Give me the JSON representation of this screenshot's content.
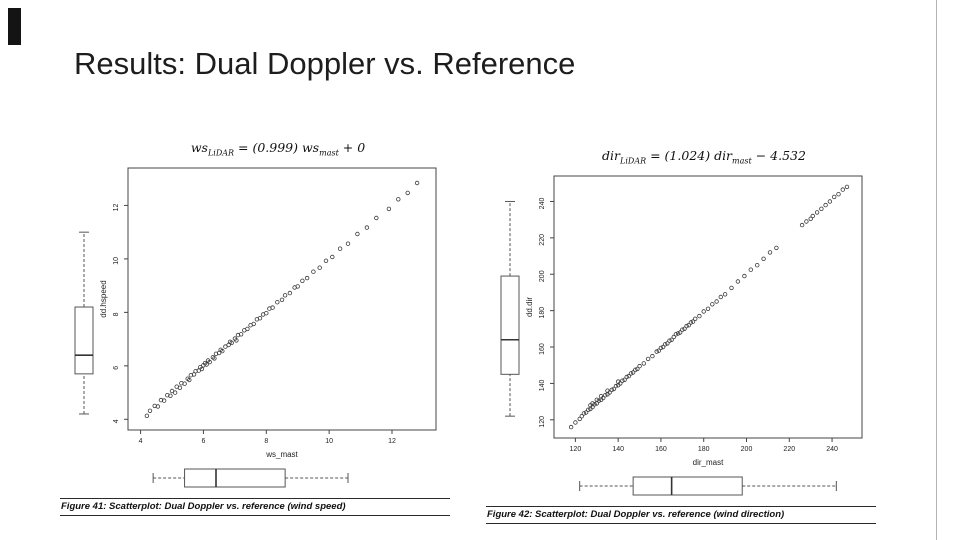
{
  "slide": {
    "title": "Results: Dual Doppler vs. Reference"
  },
  "chart_data": [
    {
      "type": "scatter",
      "title": "ws_LiDAR = (0.999) ws_mast + 0",
      "equation": {
        "lhs": "ws",
        "lhs_sub": "LiDAR",
        "mid": " = (0.999) ",
        "rhs": "ws",
        "rhs_sub": "mast",
        "tail": " + 0"
      },
      "xlabel": "ws_mast",
      "ylabel": "dd.hspeed",
      "caption": "Figure 41: Scatterplot: Dual Doppler vs. reference (wind speed)",
      "xlim": [
        3.6,
        13.4
      ],
      "ylim": [
        3.6,
        13.4
      ],
      "xticks": [
        4,
        6,
        8,
        10,
        12
      ],
      "yticks": [
        4,
        6,
        8,
        10,
        12
      ],
      "legend": "none",
      "grid": false,
      "points": [
        [
          4.2,
          4.13
        ],
        [
          4.3,
          4.32
        ],
        [
          4.45,
          4.5
        ],
        [
          4.55,
          4.48
        ],
        [
          4.65,
          4.72
        ],
        [
          4.75,
          4.7
        ],
        [
          4.85,
          4.9
        ],
        [
          4.95,
          4.88
        ],
        [
          5.0,
          5.06
        ],
        [
          5.1,
          5.0
        ],
        [
          5.15,
          5.22
        ],
        [
          5.25,
          5.18
        ],
        [
          5.3,
          5.35
        ],
        [
          5.4,
          5.33
        ],
        [
          5.5,
          5.52
        ],
        [
          5.55,
          5.47
        ],
        [
          5.6,
          5.65
        ],
        [
          5.7,
          5.68
        ],
        [
          5.75,
          5.8
        ],
        [
          5.85,
          5.82
        ],
        [
          5.9,
          5.95
        ],
        [
          5.95,
          5.88
        ],
        [
          6.0,
          6.02
        ],
        [
          6.05,
          6.1
        ],
        [
          6.1,
          6.05
        ],
        [
          6.15,
          6.2
        ],
        [
          6.2,
          6.14
        ],
        [
          6.3,
          6.32
        ],
        [
          6.35,
          6.28
        ],
        [
          6.4,
          6.45
        ],
        [
          6.5,
          6.48
        ],
        [
          6.55,
          6.6
        ],
        [
          6.6,
          6.55
        ],
        [
          6.7,
          6.72
        ],
        [
          6.8,
          6.78
        ],
        [
          6.85,
          6.9
        ],
        [
          6.9,
          6.86
        ],
        [
          7.0,
          7.02
        ],
        [
          7.05,
          6.95
        ],
        [
          7.1,
          7.15
        ],
        [
          7.2,
          7.18
        ],
        [
          7.3,
          7.33
        ],
        [
          7.4,
          7.38
        ],
        [
          7.5,
          7.52
        ],
        [
          7.6,
          7.57
        ],
        [
          7.7,
          7.74
        ],
        [
          7.8,
          7.78
        ],
        [
          7.9,
          7.92
        ],
        [
          8.0,
          7.97
        ],
        [
          8.1,
          8.14
        ],
        [
          8.2,
          8.18
        ],
        [
          8.35,
          8.38
        ],
        [
          8.5,
          8.47
        ],
        [
          8.6,
          8.64
        ],
        [
          8.75,
          8.72
        ],
        [
          8.9,
          8.93
        ],
        [
          9.0,
          8.97
        ],
        [
          9.15,
          9.18
        ],
        [
          9.3,
          9.28
        ],
        [
          9.5,
          9.52
        ],
        [
          9.7,
          9.67
        ],
        [
          9.9,
          9.93
        ],
        [
          10.1,
          10.07
        ],
        [
          10.35,
          10.38
        ],
        [
          10.6,
          10.57
        ],
        [
          10.9,
          10.93
        ],
        [
          11.2,
          11.17
        ],
        [
          11.5,
          11.53
        ],
        [
          11.9,
          11.87
        ],
        [
          12.2,
          12.23
        ],
        [
          12.5,
          12.47
        ],
        [
          12.8,
          12.84
        ]
      ],
      "box_y": {
        "min": 4.2,
        "q1": 5.7,
        "med": 6.4,
        "q3": 8.2,
        "max": 11.0
      },
      "box_x": {
        "min": 4.4,
        "q1": 5.4,
        "med": 6.4,
        "q3": 8.6,
        "max": 10.6
      }
    },
    {
      "type": "scatter",
      "title": "dir_LiDAR = (1.024) dir_mast − 4.532",
      "equation": {
        "lhs": "dir",
        "lhs_sub": "LiDAR",
        "mid": " = (1.024) ",
        "rhs": "dir",
        "rhs_sub": "mast",
        "tail": " − 4.532"
      },
      "xlabel": "dir_mast",
      "ylabel": "dd.dir",
      "caption": "Figure 42: Scatterplot: Dual Doppler vs. reference (wind direction)",
      "xlim": [
        110,
        254
      ],
      "ylim": [
        110,
        254
      ],
      "xticks": [
        120,
        140,
        160,
        180,
        200,
        220,
        240
      ],
      "yticks": [
        120,
        140,
        160,
        180,
        200,
        220,
        240
      ],
      "legend": "none",
      "grid": false,
      "points": [
        [
          118,
          116
        ],
        [
          120,
          118.5
        ],
        [
          122,
          120.5
        ],
        [
          123,
          122
        ],
        [
          124,
          123.5
        ],
        [
          125,
          124
        ],
        [
          126,
          125.5
        ],
        [
          127,
          126
        ],
        [
          127,
          128
        ],
        [
          128,
          127
        ],
        [
          128,
          129
        ],
        [
          129,
          128.5
        ],
        [
          130,
          129
        ],
        [
          130,
          131
        ],
        [
          131,
          130.5
        ],
        [
          132,
          131
        ],
        [
          132,
          133
        ],
        [
          133,
          132
        ],
        [
          134,
          133.5
        ],
        [
          135,
          134
        ],
        [
          135,
          136
        ],
        [
          136,
          135
        ],
        [
          137,
          136.5
        ],
        [
          138,
          137
        ],
        [
          139,
          138.5
        ],
        [
          140,
          139
        ],
        [
          140,
          141
        ],
        [
          141,
          140
        ],
        [
          142,
          141.5
        ],
        [
          143,
          142
        ],
        [
          144,
          143.5
        ],
        [
          145,
          144
        ],
        [
          146,
          145.5
        ],
        [
          147,
          146
        ],
        [
          148,
          147.5
        ],
        [
          149,
          148
        ],
        [
          150,
          149.5
        ],
        [
          152,
          151
        ],
        [
          154,
          153.5
        ],
        [
          156,
          155
        ],
        [
          158,
          157.5
        ],
        [
          159,
          158
        ],
        [
          160,
          159.5
        ],
        [
          161,
          160
        ],
        [
          162,
          161.5
        ],
        [
          163,
          162
        ],
        [
          164,
          163.5
        ],
        [
          165,
          164
        ],
        [
          166,
          165.5
        ],
        [
          167,
          167
        ],
        [
          168,
          167.5
        ],
        [
          169,
          168
        ],
        [
          170,
          169.5
        ],
        [
          171,
          170
        ],
        [
          172,
          171.5
        ],
        [
          173,
          172
        ],
        [
          174,
          173.5
        ],
        [
          175,
          174
        ],
        [
          176,
          175.5
        ],
        [
          178,
          177
        ],
        [
          180,
          179.5
        ],
        [
          182,
          181
        ],
        [
          184,
          183.5
        ],
        [
          186,
          185
        ],
        [
          188,
          187.5
        ],
        [
          190,
          189
        ],
        [
          193,
          192.5
        ],
        [
          196,
          196
        ],
        [
          199,
          199
        ],
        [
          202,
          202.5
        ],
        [
          205,
          205
        ],
        [
          208,
          208.5
        ],
        [
          211,
          212
        ],
        [
          214,
          214.5
        ],
        [
          226,
          227
        ],
        [
          228,
          229
        ],
        [
          230,
          230.5
        ],
        [
          231,
          232
        ],
        [
          233,
          234
        ],
        [
          235,
          236
        ],
        [
          237,
          238
        ],
        [
          239,
          240
        ],
        [
          241,
          242.5
        ],
        [
          243,
          244
        ],
        [
          245,
          246.5
        ],
        [
          247,
          248
        ]
      ],
      "box_y": {
        "min": 122,
        "q1": 145,
        "med": 164,
        "q3": 199,
        "max": 240
      },
      "box_x": {
        "min": 122,
        "q1": 147,
        "med": 165,
        "q3": 198,
        "max": 242
      }
    }
  ]
}
